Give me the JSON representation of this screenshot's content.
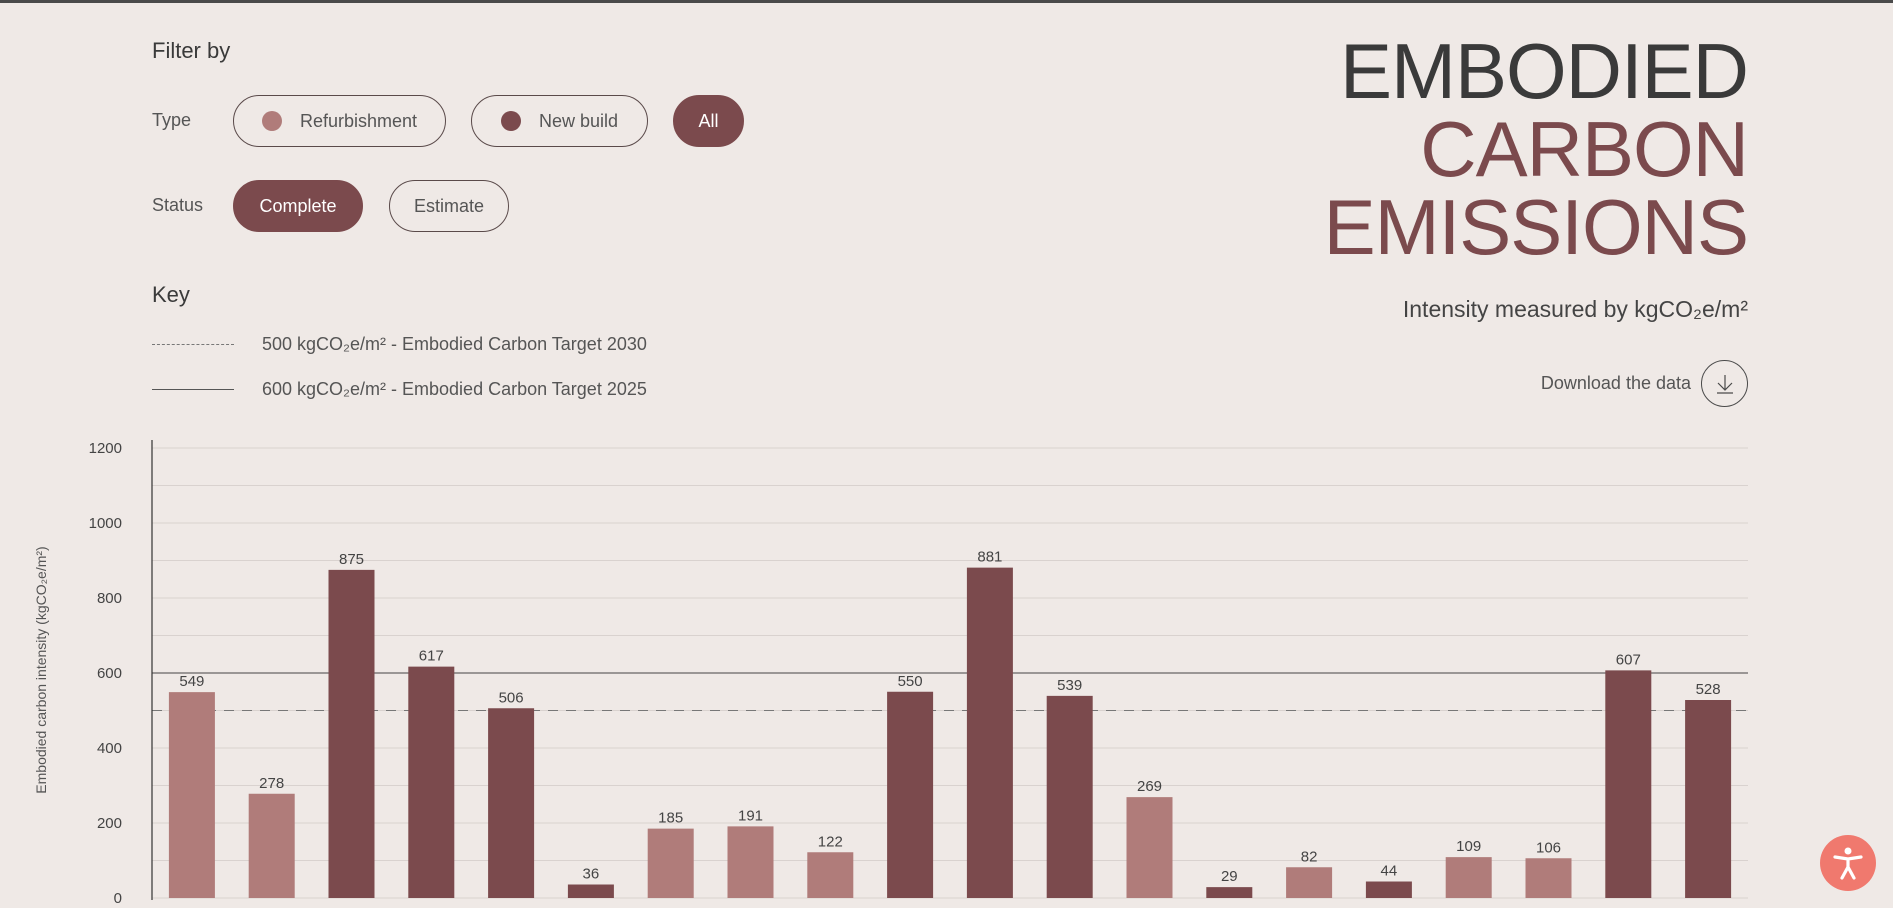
{
  "filters": {
    "title": "Filter by",
    "type_label": "Type",
    "type_options": [
      {
        "label": "Refurbishment",
        "color": "#b07c7a"
      },
      {
        "label": "New build",
        "color": "#7b4a4d"
      },
      {
        "label": "All"
      }
    ],
    "status_label": "Status",
    "status_options": [
      "Complete",
      "Estimate"
    ]
  },
  "key": {
    "title": "Key",
    "target_2030": "500 kgCO₂e/m² - Embodied Carbon Target 2030",
    "target_2025": "600 kgCO₂e/m² - Embodied Carbon Target 2025"
  },
  "header": {
    "title_line1": "EMBODIED",
    "title_line2": "CARBON",
    "title_line3": "EMISSIONS",
    "subtitle": "Intensity measured by kgCO₂e/m²",
    "download_label": "Download the data"
  },
  "colors": {
    "refurbishment": "#b07c7a",
    "new_build": "#7b4a4d",
    "accent": "#7b4a4d",
    "accessibility": "#f0796e"
  },
  "chart_data": {
    "type": "bar",
    "ylabel": "Embodied carbon intensity (kgCO₂e/m²)",
    "ylim": [
      0,
      1200
    ],
    "yticks": [
      0,
      200,
      400,
      600,
      800,
      1000,
      1200
    ],
    "grid": true,
    "values": [
      549,
      278,
      875,
      617,
      506,
      36,
      185,
      191,
      122,
      550,
      881,
      539,
      269,
      29,
      82,
      44,
      109,
      106,
      607,
      528
    ],
    "types": [
      "refurbishment",
      "refurbishment",
      "new_build",
      "new_build",
      "new_build",
      "new_build",
      "refurbishment",
      "refurbishment",
      "refurbishment",
      "new_build",
      "new_build",
      "new_build",
      "refurbishment",
      "new_build",
      "refurbishment",
      "new_build",
      "refurbishment",
      "refurbishment",
      "new_build",
      "new_build"
    ],
    "reference_lines": [
      {
        "value": 500,
        "style": "dashed"
      },
      {
        "value": 600,
        "style": "solid"
      }
    ]
  }
}
